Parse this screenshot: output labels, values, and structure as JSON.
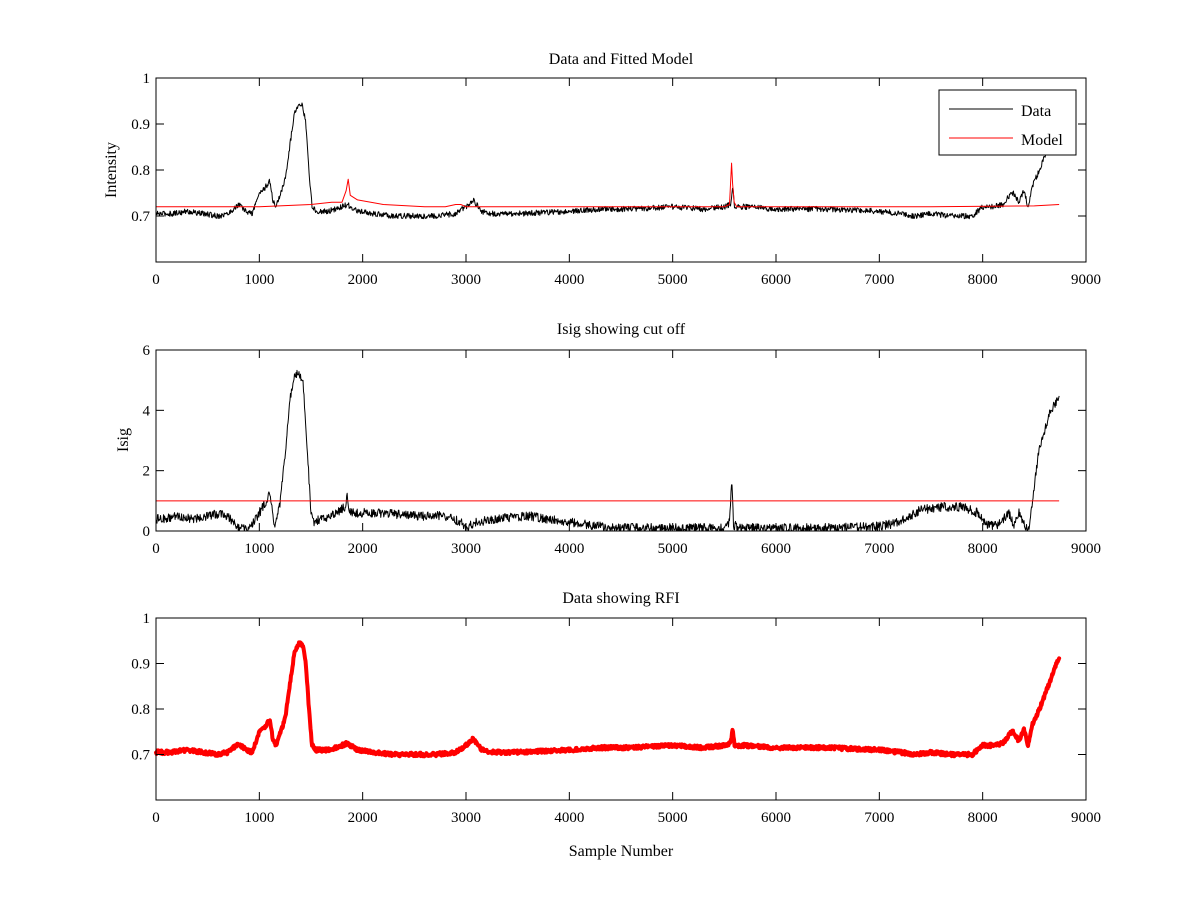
{
  "figure": {
    "background": "#ffffff"
  },
  "chart_data": [
    {
      "type": "line",
      "title": "Data and Fitted Model",
      "xlabel": "",
      "ylabel": "Intensity",
      "xlim": [
        0,
        9000
      ],
      "ylim": [
        0.6,
        1.0
      ],
      "xticks": [
        0,
        1000,
        2000,
        3000,
        4000,
        5000,
        6000,
        7000,
        8000,
        9000
      ],
      "yticks": [
        0.7,
        0.8,
        0.9,
        1
      ],
      "xtick_labels": [
        "0",
        "1000",
        "2000",
        "3000",
        "4000",
        "5000",
        "6000",
        "7000",
        "8000",
        "9000"
      ],
      "ytick_labels": [
        "0.7",
        "0.8",
        "0.9",
        "1"
      ],
      "grid": false,
      "legend": {
        "position": "top-right",
        "entries": [
          "Data",
          "Model"
        ]
      },
      "series": [
        {
          "name": "Data",
          "color": "#000000",
          "noise": 0.006,
          "x": [
            0,
            150,
            300,
            450,
            600,
            700,
            800,
            870,
            930,
            1000,
            1050,
            1100,
            1130,
            1160,
            1200,
            1250,
            1300,
            1340,
            1380,
            1420,
            1450,
            1480,
            1510,
            1550,
            1650,
            1750,
            1850,
            1950,
            2100,
            2300,
            2500,
            2700,
            2900,
            3000,
            3070,
            3150,
            3250,
            3500,
            4000,
            4300,
            4600,
            5000,
            5300,
            5500,
            5560,
            5580,
            5600,
            5700,
            6000,
            6500,
            7000,
            7200,
            7350,
            7500,
            7700,
            7900,
            8000,
            8100,
            8200,
            8260,
            8300,
            8350,
            8400,
            8440,
            8480,
            8550,
            8650,
            8740
          ],
          "y": [
            0.705,
            0.705,
            0.71,
            0.705,
            0.7,
            0.705,
            0.725,
            0.71,
            0.705,
            0.75,
            0.76,
            0.775,
            0.735,
            0.72,
            0.745,
            0.78,
            0.86,
            0.925,
            0.945,
            0.94,
            0.9,
            0.8,
            0.72,
            0.71,
            0.71,
            0.715,
            0.725,
            0.71,
            0.705,
            0.7,
            0.7,
            0.7,
            0.705,
            0.72,
            0.735,
            0.71,
            0.705,
            0.705,
            0.71,
            0.715,
            0.715,
            0.72,
            0.715,
            0.72,
            0.725,
            0.765,
            0.72,
            0.72,
            0.715,
            0.715,
            0.71,
            0.705,
            0.7,
            0.705,
            0.7,
            0.7,
            0.72,
            0.72,
            0.725,
            0.745,
            0.75,
            0.73,
            0.755,
            0.72,
            0.765,
            0.8,
            0.86,
            0.915
          ]
        },
        {
          "name": "Model",
          "color": "#ff0000",
          "noise": 0,
          "x": [
            0,
            1000,
            1500,
            1700,
            1800,
            1840,
            1860,
            1880,
            1950,
            2200,
            2600,
            2800,
            2900,
            2950,
            3000,
            3100,
            3500,
            4000,
            4500,
            5000,
            5500,
            5550,
            5570,
            5580,
            5595,
            5620,
            5700,
            6500,
            7500,
            8500,
            8740
          ],
          "y": [
            0.72,
            0.72,
            0.725,
            0.73,
            0.73,
            0.755,
            0.78,
            0.745,
            0.735,
            0.725,
            0.72,
            0.72,
            0.725,
            0.725,
            0.72,
            0.72,
            0.72,
            0.72,
            0.72,
            0.72,
            0.72,
            0.725,
            0.815,
            0.77,
            0.73,
            0.72,
            0.72,
            0.72,
            0.72,
            0.722,
            0.725
          ]
        }
      ]
    },
    {
      "type": "line",
      "title": "Isig showing cut off",
      "xlabel": "",
      "ylabel": "Isig",
      "xlim": [
        0,
        9000
      ],
      "ylim": [
        0,
        6
      ],
      "xticks": [
        0,
        1000,
        2000,
        3000,
        4000,
        5000,
        6000,
        7000,
        8000,
        9000
      ],
      "yticks": [
        0,
        2,
        4,
        6
      ],
      "xtick_labels": [
        "0",
        "1000",
        "2000",
        "3000",
        "4000",
        "5000",
        "6000",
        "7000",
        "8000",
        "9000"
      ],
      "ytick_labels": [
        "0",
        "2",
        "4",
        "6"
      ],
      "grid": false,
      "series": [
        {
          "color": "#000000",
          "noise": 0.15,
          "x": [
            0,
            100,
            200,
            350,
            500,
            650,
            750,
            800,
            900,
            1000,
            1100,
            1150,
            1200,
            1250,
            1300,
            1350,
            1380,
            1420,
            1460,
            1500,
            1530,
            1600,
            1750,
            1830,
            1850,
            1870,
            1950,
            2200,
            2500,
            2800,
            2950,
            3000,
            3100,
            3300,
            3600,
            4000,
            4300,
            4500,
            5000,
            5500,
            5550,
            5570,
            5590,
            5650,
            6000,
            6500,
            7000,
            7200,
            7400,
            7600,
            7800,
            7950,
            8050,
            8150,
            8250,
            8300,
            8350,
            8400,
            8450,
            8480,
            8550,
            8650,
            8740
          ],
          "y": [
            0.4,
            0.4,
            0.5,
            0.4,
            0.5,
            0.6,
            0.3,
            0.1,
            0.05,
            0.6,
            1.2,
            0.1,
            0.9,
            2.5,
            4.5,
            5.2,
            5.3,
            5.0,
            3.0,
            0.5,
            0.3,
            0.4,
            0.6,
            0.8,
            1.3,
            0.6,
            0.6,
            0.6,
            0.5,
            0.5,
            0.3,
            0.1,
            0.3,
            0.4,
            0.5,
            0.3,
            0.15,
            0.1,
            0.1,
            0.1,
            0.3,
            1.7,
            0.2,
            0.1,
            0.1,
            0.1,
            0.15,
            0.3,
            0.7,
            0.8,
            0.8,
            0.6,
            0.2,
            0.2,
            0.6,
            0.2,
            0.6,
            0.2,
            0.1,
            1.0,
            2.8,
            3.9,
            4.5
          ]
        },
        {
          "color": "#ff0000",
          "noise": 0,
          "x": [
            0,
            8740
          ],
          "y": [
            1.0,
            1.0
          ]
        }
      ]
    },
    {
      "type": "line",
      "title": "Data showing RFI",
      "xlabel": "Sample Number",
      "ylabel": "",
      "xlim": [
        0,
        9000
      ],
      "ylim": [
        0.6,
        1.0
      ],
      "xticks": [
        0,
        1000,
        2000,
        3000,
        4000,
        5000,
        6000,
        7000,
        8000,
        9000
      ],
      "yticks": [
        0.7,
        0.8,
        0.9,
        1
      ],
      "xtick_labels": [
        "0",
        "1000",
        "2000",
        "3000",
        "4000",
        "5000",
        "6000",
        "7000",
        "8000",
        "9000"
      ],
      "ytick_labels": [
        "0.7",
        "0.8",
        "0.9",
        "1"
      ],
      "grid": false,
      "series": [
        {
          "color": "#ff0000",
          "noise": 0.004,
          "style": "thick",
          "x": [
            0,
            150,
            300,
            450,
            600,
            700,
            800,
            870,
            930,
            1000,
            1050,
            1100,
            1130,
            1160,
            1200,
            1250,
            1300,
            1340,
            1380,
            1420,
            1450,
            1480,
            1510,
            1550,
            1650,
            1750,
            1850,
            1950,
            2100,
            2300,
            2500,
            2700,
            2900,
            3000,
            3070,
            3150,
            3250,
            3500,
            4000,
            4300,
            4600,
            5000,
            5300,
            5500,
            5560,
            5580,
            5600,
            5700,
            6000,
            6500,
            7000,
            7200,
            7350,
            7500,
            7700,
            7900,
            8000,
            8100,
            8200,
            8260,
            8300,
            8350,
            8400,
            8440,
            8480,
            8550,
            8650,
            8740
          ],
          "y": [
            0.705,
            0.705,
            0.71,
            0.705,
            0.7,
            0.705,
            0.725,
            0.71,
            0.705,
            0.75,
            0.76,
            0.775,
            0.735,
            0.72,
            0.745,
            0.78,
            0.86,
            0.925,
            0.945,
            0.94,
            0.9,
            0.8,
            0.72,
            0.71,
            0.71,
            0.715,
            0.725,
            0.71,
            0.705,
            0.7,
            0.7,
            0.7,
            0.705,
            0.72,
            0.735,
            0.71,
            0.705,
            0.705,
            0.71,
            0.715,
            0.715,
            0.72,
            0.715,
            0.72,
            0.725,
            0.755,
            0.72,
            0.72,
            0.715,
            0.715,
            0.71,
            0.705,
            0.7,
            0.705,
            0.7,
            0.7,
            0.72,
            0.72,
            0.725,
            0.745,
            0.75,
            0.73,
            0.755,
            0.72,
            0.765,
            0.8,
            0.86,
            0.915
          ]
        }
      ]
    }
  ]
}
